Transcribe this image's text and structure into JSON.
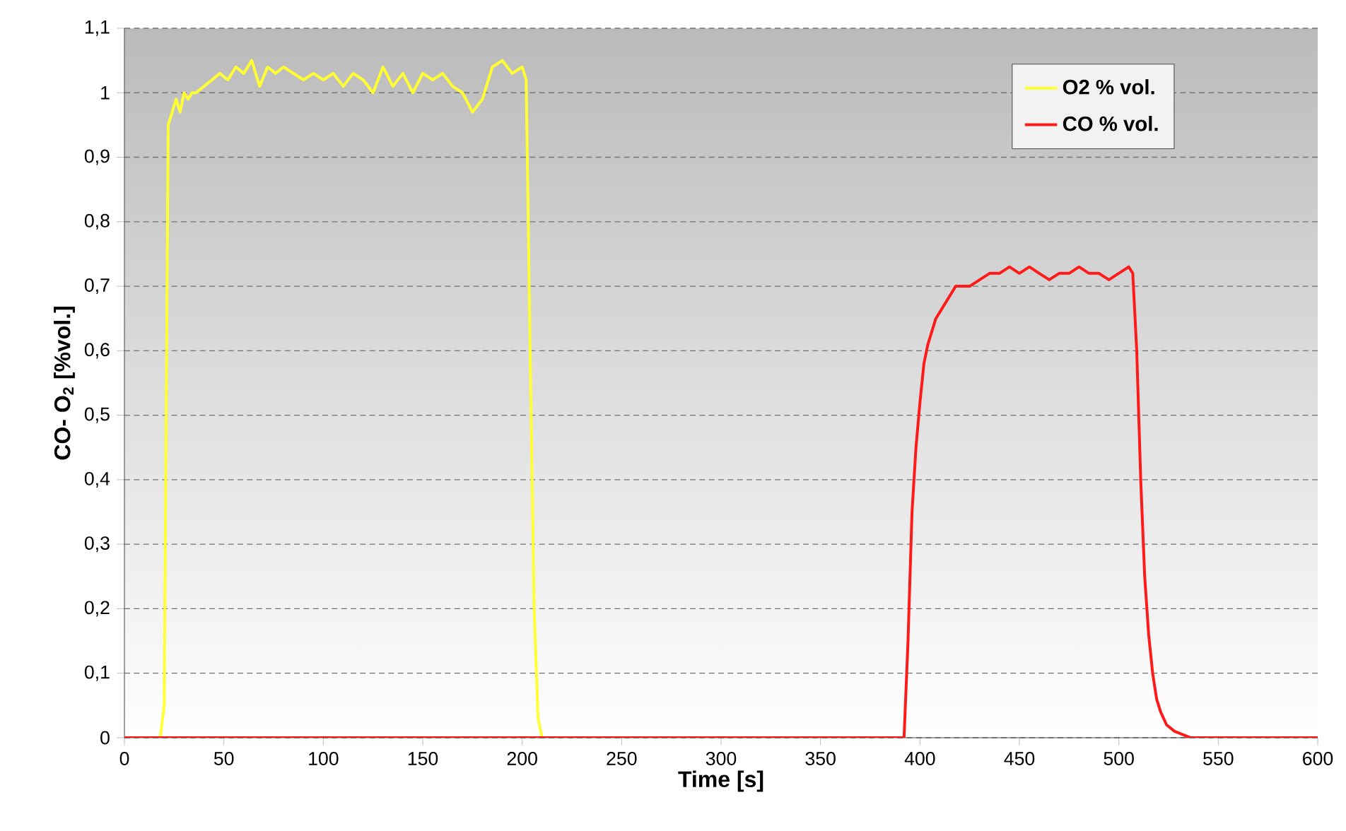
{
  "chart_data": {
    "type": "line",
    "xlabel": "Time [s]",
    "ylabel": "CO- O$_{2}$ [%vol.]",
    "xlim": [
      0,
      600
    ],
    "xticks": [
      0,
      50,
      100,
      150,
      200,
      250,
      300,
      350,
      400,
      450,
      500,
      550,
      600
    ],
    "ylim": [
      0,
      1.1
    ],
    "yticks": [
      {
        "value": 0,
        "label": "0"
      },
      {
        "value": 0.1,
        "label": "0,1"
      },
      {
        "value": 0.2,
        "label": "0,2"
      },
      {
        "value": 0.3,
        "label": "0,3"
      },
      {
        "value": 0.4,
        "label": "0,4"
      },
      {
        "value": 0.5,
        "label": "0,5"
      },
      {
        "value": 0.6,
        "label": "0,6"
      },
      {
        "value": 0.7,
        "label": "0,7"
      },
      {
        "value": 0.8,
        "label": "0,8"
      },
      {
        "value": 0.9,
        "label": "0,9"
      },
      {
        "value": 1,
        "label": "1"
      },
      {
        "value": 1.1,
        "label": "1,1"
      }
    ],
    "grid": "y",
    "legend": "top right",
    "marker": "none",
    "line_style": "solid",
    "series": [
      {
        "name": "O2 % vol.",
        "color": "#ffff33",
        "x": [
          18,
          20,
          22,
          24,
          26,
          28,
          30,
          32,
          34,
          36,
          40,
          44,
          48,
          52,
          56,
          60,
          64,
          68,
          72,
          76,
          80,
          85,
          90,
          95,
          100,
          105,
          110,
          115,
          120,
          125,
          130,
          135,
          140,
          145,
          150,
          155,
          160,
          165,
          170,
          175,
          180,
          185,
          190,
          195,
          200,
          202,
          204,
          206,
          208,
          210
        ],
        "values": [
          0,
          0.05,
          0.95,
          0.97,
          0.99,
          0.97,
          1.0,
          0.99,
          1.0,
          1.0,
          1.01,
          1.02,
          1.03,
          1.02,
          1.04,
          1.03,
          1.05,
          1.01,
          1.04,
          1.03,
          1.04,
          1.03,
          1.02,
          1.03,
          1.02,
          1.03,
          1.01,
          1.03,
          1.02,
          1.0,
          1.04,
          1.01,
          1.03,
          1.0,
          1.03,
          1.02,
          1.03,
          1.01,
          1.0,
          0.97,
          0.99,
          1.04,
          1.05,
          1.03,
          1.04,
          1.02,
          0.6,
          0.2,
          0.03,
          0
        ]
      },
      {
        "name": "CO % vol.",
        "color": "#ff1a1a",
        "x": [
          0,
          392,
          394,
          396,
          398,
          400,
          402,
          404,
          406,
          408,
          410,
          412,
          414,
          416,
          418,
          420,
          425,
          430,
          435,
          440,
          445,
          450,
          455,
          460,
          465,
          470,
          475,
          480,
          485,
          490,
          495,
          500,
          505,
          507,
          509,
          511,
          513,
          515,
          517,
          519,
          521,
          524,
          528,
          532,
          536,
          600
        ],
        "values": [
          0,
          0,
          0.15,
          0.35,
          0.45,
          0.52,
          0.58,
          0.61,
          0.63,
          0.65,
          0.66,
          0.67,
          0.68,
          0.69,
          0.7,
          0.7,
          0.7,
          0.71,
          0.72,
          0.72,
          0.73,
          0.72,
          0.73,
          0.72,
          0.71,
          0.72,
          0.72,
          0.73,
          0.72,
          0.72,
          0.71,
          0.72,
          0.73,
          0.72,
          0.6,
          0.4,
          0.25,
          0.16,
          0.1,
          0.06,
          0.04,
          0.02,
          0.01,
          0.005,
          0,
          0
        ]
      }
    ]
  }
}
